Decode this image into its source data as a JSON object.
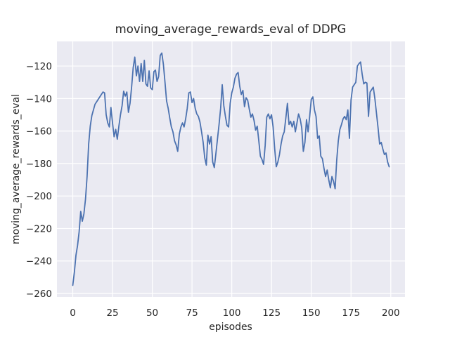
{
  "chart_data": {
    "type": "line",
    "title": "moving_average_rewards_eval of DDPG",
    "xlabel": "episodes",
    "ylabel": "moving_average_rewards_eval",
    "grid": true,
    "legend_position": "none",
    "line_color": "#4C72B0",
    "axes_background": "#EAEAF2",
    "grid_color": "#FFFFFF",
    "text_color": "#262626",
    "xlim": [
      -9.95,
      208.95
    ],
    "ylim": [
      -262.15,
      -104.85
    ],
    "x_start": 0,
    "x_step": 1,
    "x_ticks": [
      {
        "value": 0,
        "label": "0"
      },
      {
        "value": 25,
        "label": "25"
      },
      {
        "value": 50,
        "label": "50"
      },
      {
        "value": 75,
        "label": "75"
      },
      {
        "value": 100,
        "label": "100"
      },
      {
        "value": 125,
        "label": "125"
      },
      {
        "value": 150,
        "label": "150"
      },
      {
        "value": 175,
        "label": "175"
      },
      {
        "value": 200,
        "label": "200"
      }
    ],
    "y_ticks": [
      {
        "value": -120,
        "label": "−120"
      },
      {
        "value": -140,
        "label": "−140"
      },
      {
        "value": -160,
        "label": "−160"
      },
      {
        "value": -180,
        "label": "−180"
      },
      {
        "value": -200,
        "label": "−200"
      },
      {
        "value": -220,
        "label": "−220"
      },
      {
        "value": -240,
        "label": "−240"
      },
      {
        "value": -260,
        "label": "−260"
      }
    ],
    "values": [
      -255,
      -247,
      -236.5,
      -230.5,
      -222,
      -209.5,
      -215.5,
      -211,
      -202,
      -188,
      -168,
      -157,
      -150.5,
      -147,
      -143.5,
      -142,
      -140.5,
      -139,
      -137.5,
      -136,
      -136.5,
      -150,
      -155,
      -157.5,
      -145.5,
      -155,
      -163.5,
      -159,
      -165,
      -157,
      -150,
      -144.5,
      -135.5,
      -138.5,
      -136,
      -148.5,
      -143,
      -133,
      -121,
      -114.5,
      -126,
      -120,
      -129.5,
      -118.5,
      -129.5,
      -116.5,
      -131,
      -132.5,
      -123,
      -133.5,
      -134.5,
      -123.5,
      -122.5,
      -129.5,
      -126.5,
      -113.5,
      -112,
      -119,
      -130,
      -141.5,
      -146,
      -152,
      -157.5,
      -160.5,
      -166,
      -168.5,
      -172.5,
      -162,
      -157.5,
      -155,
      -157.5,
      -152.5,
      -146,
      -136.5,
      -136,
      -142.5,
      -140,
      -146,
      -149.5,
      -151,
      -154.5,
      -160.5,
      -167,
      -176.5,
      -181,
      -162.5,
      -168,
      -163.5,
      -179,
      -182.5,
      -174,
      -165,
      -156,
      -146,
      -131.5,
      -144.5,
      -151,
      -156.5,
      -157.5,
      -143,
      -136.5,
      -133,
      -127.5,
      -125,
      -124,
      -132.5,
      -137.5,
      -135,
      -145,
      -139.5,
      -141,
      -146.5,
      -151.5,
      -149.5,
      -153.5,
      -159.5,
      -157,
      -166,
      -175.5,
      -177.5,
      -180.5,
      -169,
      -151.5,
      -149.5,
      -152.5,
      -150,
      -157.5,
      -171,
      -182,
      -179,
      -174.5,
      -168,
      -163,
      -160.5,
      -152,
      -143,
      -156,
      -154,
      -157.5,
      -154,
      -160.5,
      -155,
      -149.5,
      -152.5,
      -158,
      -172.5,
      -167,
      -153,
      -160.5,
      -151,
      -140.5,
      -139,
      -147,
      -151,
      -164.5,
      -163,
      -175.5,
      -177,
      -183,
      -188,
      -184,
      -190,
      -195,
      -188,
      -191,
      -195.5,
      -178,
      -166,
      -159,
      -156,
      -152.5,
      -151,
      -153,
      -147,
      -164.5,
      -141,
      -133,
      -131.5,
      -130,
      -120,
      -118.5,
      -117.5,
      -125,
      -131,
      -130,
      -130.5,
      -151,
      -136,
      -134.5,
      -133,
      -140,
      -149,
      -158,
      -168,
      -167,
      -171,
      -174.5,
      -173.5,
      -179,
      -182
    ]
  }
}
